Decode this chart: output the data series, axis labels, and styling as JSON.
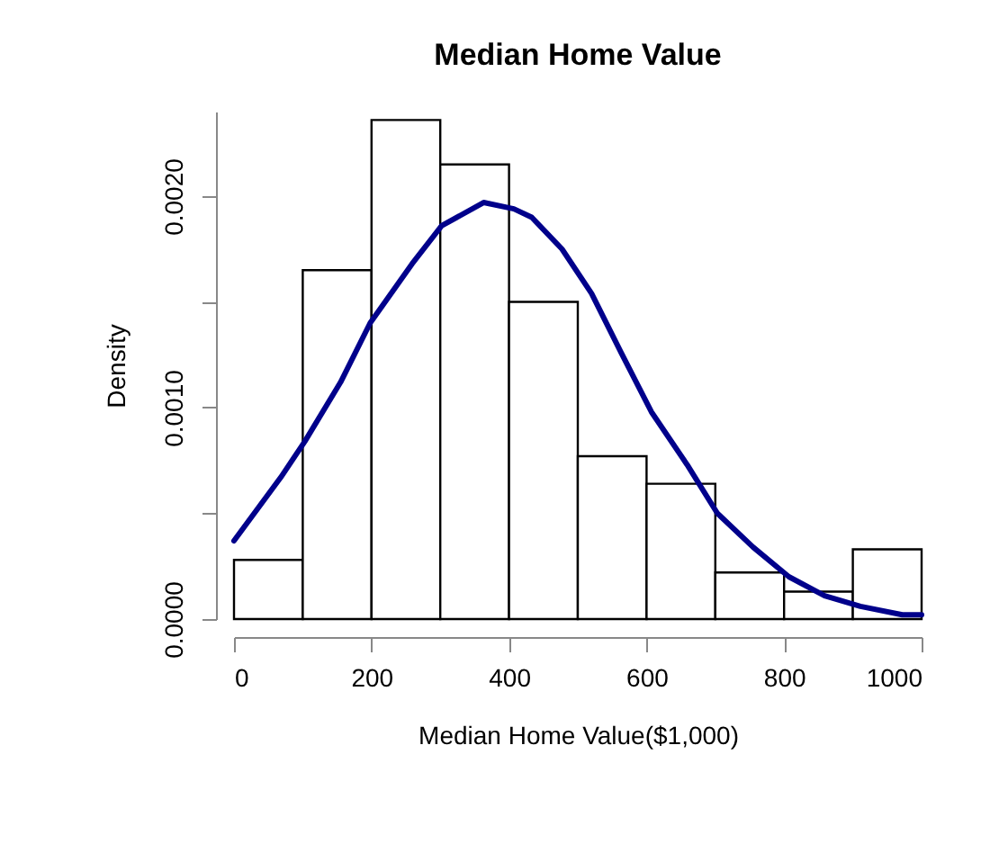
{
  "chart_data": {
    "type": "histogram",
    "title": "Median Home Value",
    "xlabel": "Median Home Value($1,000)",
    "ylabel": "Density",
    "bins": [
      0,
      100,
      200,
      300,
      400,
      500,
      600,
      700,
      800,
      900,
      1000
    ],
    "values": [
      0.00028,
      0.00165,
      0.00236,
      0.00215,
      0.0015,
      0.00077,
      0.00064,
      0.00022,
      0.00013,
      0.00033
    ],
    "color": "#ffffff",
    "series": [
      {
        "type": "line",
        "color": "#00008b",
        "x": [
          0,
          68,
          103,
          155,
          198,
          259,
          302,
          363,
          407,
          433,
          477,
          520,
          563,
          607,
          659,
          703,
          755,
          807,
          859,
          911,
          972,
          1000
        ],
        "values": [
          0.00037,
          0.00067,
          0.00084,
          0.00112,
          0.0014,
          0.00168,
          0.00186,
          0.00197,
          0.00194,
          0.0019,
          0.00175,
          0.00154,
          0.00126,
          0.00098,
          0.00073,
          0.0005,
          0.00034,
          0.0002,
          0.00011,
          6e-05,
          2e-05,
          2e-05
        ]
      }
    ],
    "xlim": [
      0,
      1000
    ],
    "xticks": [
      0,
      200,
      400,
      600,
      800,
      1000
    ],
    "ylim": [
      0,
      0.0024
    ],
    "yticks": [
      {
        "value": 0,
        "label": "0.0000"
      },
      {
        "value": 0.0005,
        "label": null
      },
      {
        "value": 0.001,
        "label": "0.0010"
      },
      {
        "value": 0.0015,
        "label": null
      },
      {
        "value": 0.002,
        "label": "0.0020"
      }
    ],
    "grid": false
  }
}
